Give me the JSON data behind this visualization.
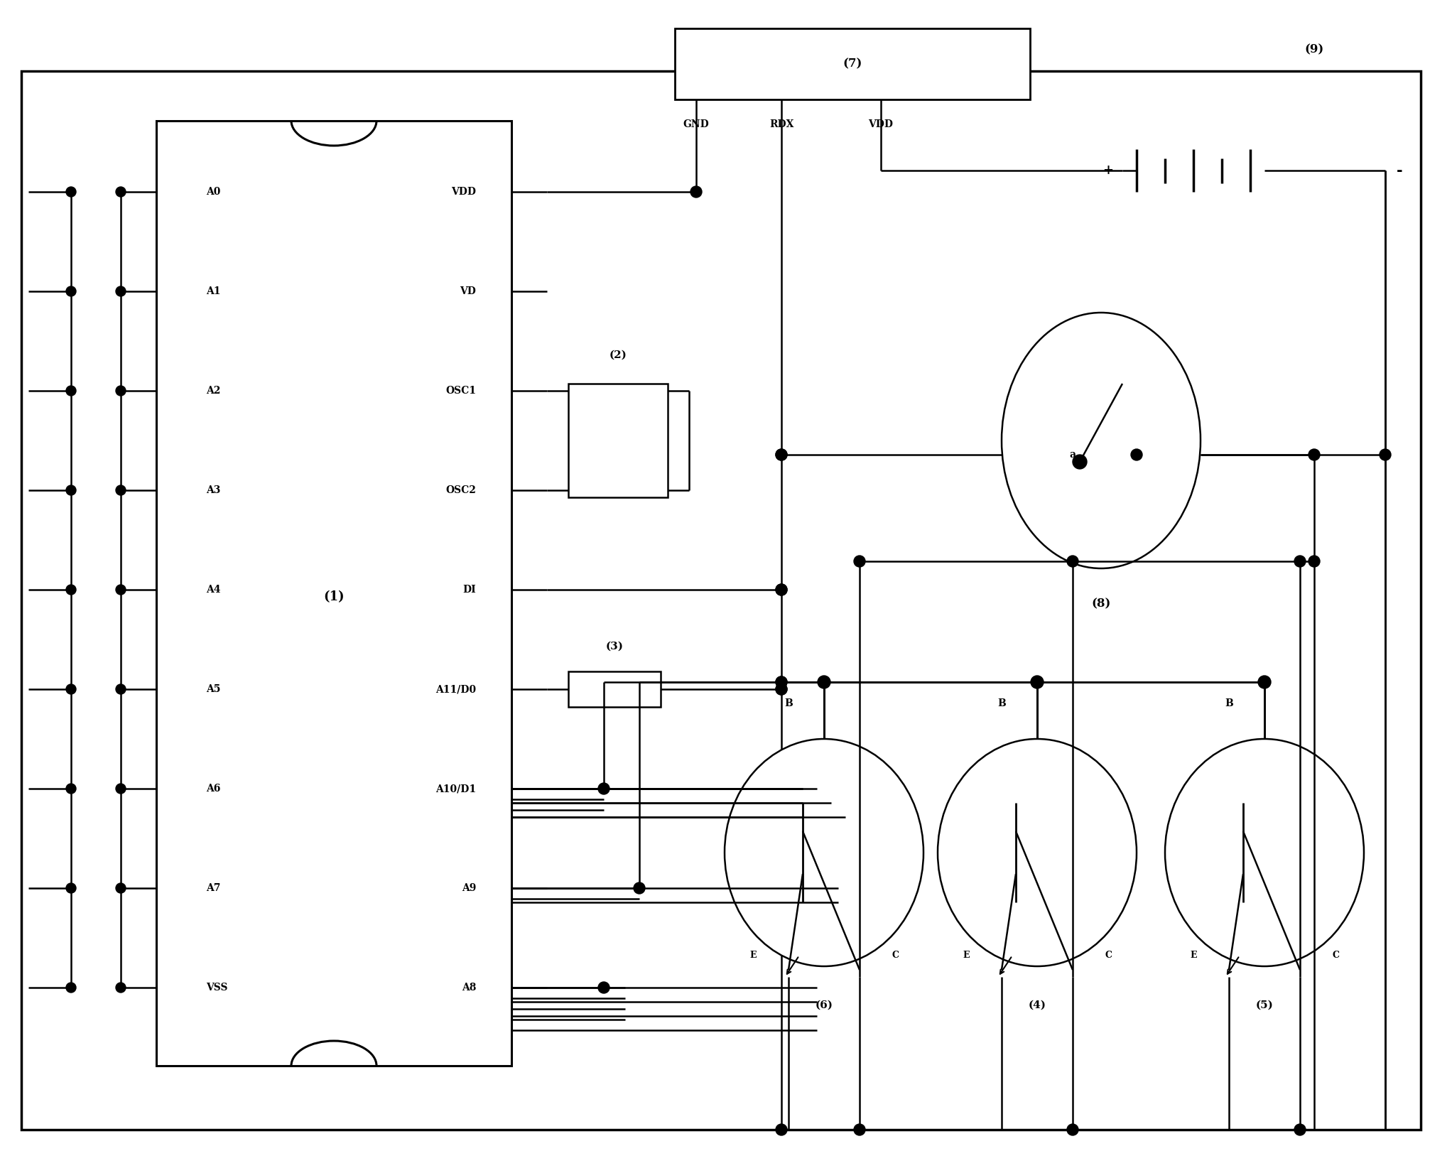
{
  "bg_color": "#ffffff",
  "fig_width": 20.44,
  "fig_height": 16.2,
  "left_pins": [
    "A0",
    "A1",
    "A2",
    "A3",
    "A4",
    "A5",
    "A6",
    "A7",
    "VSS"
  ],
  "right_pins": [
    "VDD",
    "VD",
    "OSC1",
    "OSC2",
    "DI",
    "A11/D0",
    "A10/D1",
    "A9",
    "A8"
  ],
  "ic_label": "(1)",
  "mod7_label": "(7)",
  "comp2_label": "(2)",
  "comp3_label": "(3)",
  "sw8_label": "(8)",
  "batt9_label": "(9)",
  "t4_label": "(4)",
  "t5_label": "(5)",
  "t6_label": "(6)",
  "gnd_label": "GND",
  "rdx_label": "RDX",
  "vdd_label": "VDD"
}
